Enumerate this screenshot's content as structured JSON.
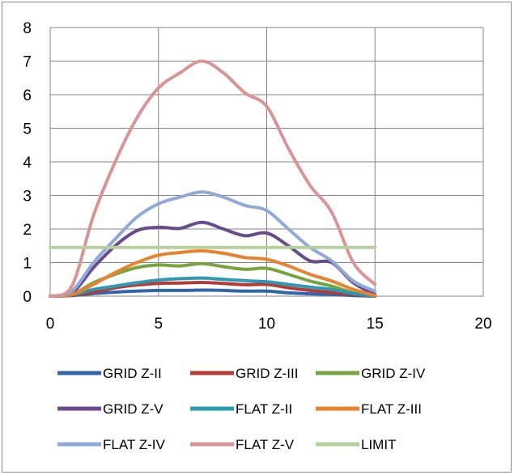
{
  "chart_data": {
    "type": "line",
    "title": "",
    "xlabel": "",
    "ylabel": "",
    "xlim": [
      0,
      20
    ],
    "ylim": [
      0,
      8
    ],
    "x_ticks": [
      "0",
      "5",
      "10",
      "15",
      "20"
    ],
    "y_ticks": [
      "0",
      "1",
      "2",
      "3",
      "4",
      "5",
      "6",
      "7",
      "8"
    ],
    "grid": true,
    "legend_position": "bottom",
    "x": [
      0,
      1,
      2,
      3,
      4,
      5,
      6,
      7,
      8,
      9,
      10,
      11,
      12,
      13,
      14,
      15
    ],
    "series": [
      {
        "name": "GRID  Z-II",
        "color": "#2f66ae",
        "values": [
          0,
          0.02,
          0.08,
          0.12,
          0.15,
          0.17,
          0.17,
          0.18,
          0.17,
          0.15,
          0.15,
          0.1,
          0.07,
          0.05,
          0.02,
          0
        ]
      },
      {
        "name": "GRID  Z-III",
        "color": "#b73a37",
        "values": [
          0,
          0.03,
          0.12,
          0.25,
          0.33,
          0.38,
          0.39,
          0.41,
          0.38,
          0.34,
          0.35,
          0.25,
          0.17,
          0.11,
          0.05,
          0
        ]
      },
      {
        "name": "GRID  Z-IV",
        "color": "#77a43f",
        "values": [
          0,
          0.05,
          0.4,
          0.65,
          0.85,
          0.93,
          0.9,
          0.97,
          0.88,
          0.8,
          0.83,
          0.65,
          0.45,
          0.3,
          0.1,
          0
        ]
      },
      {
        "name": "GRID  Z-V",
        "color": "#6a4a8f",
        "values": [
          0,
          0.1,
          0.85,
          1.5,
          1.95,
          2.05,
          2.02,
          2.2,
          2.0,
          1.8,
          1.88,
          1.5,
          1.05,
          1.0,
          0.4,
          0.05
        ]
      },
      {
        "name": "FLAT Z-II",
        "color": "#2b9ab4",
        "values": [
          0,
          0.04,
          0.2,
          0.3,
          0.4,
          0.48,
          0.52,
          0.54,
          0.5,
          0.46,
          0.43,
          0.35,
          0.27,
          0.2,
          0.08,
          0
        ]
      },
      {
        "name": "FLAT Z-III",
        "color": "#e8822f",
        "values": [
          0,
          0.05,
          0.35,
          0.7,
          1.0,
          1.22,
          1.3,
          1.35,
          1.28,
          1.15,
          1.1,
          0.9,
          0.65,
          0.45,
          0.2,
          0.02
        ]
      },
      {
        "name": "FLAT Z-IV",
        "color": "#8eaadb",
        "values": [
          0,
          0.15,
          1.0,
          1.7,
          2.35,
          2.75,
          2.95,
          3.1,
          2.95,
          2.7,
          2.55,
          2.0,
          1.45,
          1.05,
          0.45,
          0.15
        ]
      },
      {
        "name": "FLAT Z-V",
        "color": "#d99594",
        "values": [
          0,
          0.3,
          2.4,
          4.0,
          5.3,
          6.2,
          6.65,
          7.0,
          6.65,
          6.05,
          5.65,
          4.4,
          3.3,
          2.5,
          1.0,
          0.35
        ]
      },
      {
        "name": "LIMIT",
        "color": "#b6d09c",
        "values": [
          1.45,
          1.45,
          1.45,
          1.45,
          1.45,
          1.45,
          1.45,
          1.45,
          1.45,
          1.45,
          1.45,
          1.45,
          1.45,
          1.45,
          1.45,
          1.45
        ]
      }
    ]
  }
}
